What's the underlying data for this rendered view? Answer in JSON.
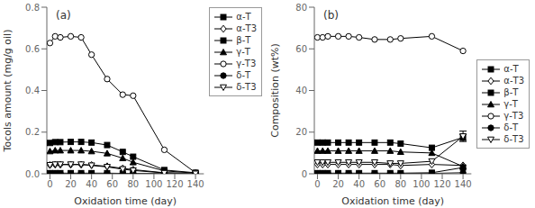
{
  "chart_data": [
    {
      "type": "line",
      "annotation": "(a)",
      "x_label": "Oxidation time (day)",
      "y_label": "Tocols amount (mg/g oil)",
      "x": [
        0,
        5,
        10,
        20,
        30,
        40,
        55,
        70,
        80,
        110,
        140
      ],
      "xlim": [
        -3,
        148
      ],
      "xticks": [
        0,
        20,
        40,
        60,
        80,
        100,
        120,
        140
      ],
      "ylim": [
        0,
        0.8
      ],
      "yticks": [
        {
          "value": 0,
          "label": "0.0"
        },
        0.2,
        0.4,
        0.6,
        0.8
      ],
      "legend": "upper right",
      "series": [
        {
          "name": "α-T",
          "color": "black",
          "marker": "square",
          "values": [
            0.148,
            0.152,
            0.152,
            0.153,
            0.153,
            0.15,
            0.138,
            0.105,
            0.082,
            0.018,
            0.005
          ]
        },
        {
          "name": "α-T3",
          "color": "black",
          "marker": "diamond-open",
          "values": [
            0.042,
            0.044,
            0.044,
            0.044,
            0.044,
            0.042,
            0.036,
            0.026,
            0.02,
            0.005,
            0.002
          ]
        },
        {
          "name": "β-T",
          "color": "black",
          "marker": "square",
          "values": [
            0.003,
            0.003,
            0.003,
            0.003,
            0.003,
            0.003,
            0.003,
            0.002,
            0.001,
            0.001,
            0.0
          ]
        },
        {
          "name": "γ-T",
          "color": "black",
          "marker": "triangle-up",
          "values": [
            0.108,
            0.112,
            0.112,
            0.112,
            0.112,
            0.108,
            0.098,
            0.075,
            0.055,
            0.014,
            0.003
          ]
        },
        {
          "name": "γ-T3",
          "color": "black",
          "marker": "circle-open",
          "values": [
            0.628,
            0.66,
            0.655,
            0.66,
            0.655,
            0.572,
            0.455,
            0.38,
            0.375,
            0.115,
            0.005
          ]
        },
        {
          "name": "δ-T",
          "color": "black",
          "marker": "circle",
          "values": [
            0.002,
            0.002,
            0.002,
            0.002,
            0.002,
            0.002,
            0.002,
            0.001,
            0.001,
            0.0,
            0.0
          ]
        },
        {
          "name": "δ-T3",
          "color": "black",
          "marker": "triangle-down-open",
          "values": [
            0.042,
            0.045,
            0.045,
            0.045,
            0.045,
            0.04,
            0.033,
            0.022,
            0.016,
            0.004,
            0.001
          ]
        }
      ]
    },
    {
      "type": "line",
      "annotation": "(b)",
      "x_label": "Oxidation time (day)",
      "y_label": "Composition (wt%)",
      "x": [
        0,
        5,
        10,
        20,
        30,
        40,
        55,
        70,
        80,
        110,
        140
      ],
      "xlim": [
        -3,
        148
      ],
      "xticks": [
        0,
        20,
        40,
        60,
        80,
        100,
        120,
        140
      ],
      "ylim": [
        0,
        80
      ],
      "yticks": [
        0,
        20,
        40,
        60,
        80
      ],
      "legend": "center right",
      "series": [
        {
          "name": "α-T",
          "color": "black",
          "marker": "square",
          "values": [
            15.0,
            15.0,
            15.0,
            15.0,
            15.0,
            15.0,
            15.0,
            15.0,
            14.5,
            12.5,
            17.5
          ],
          "errors": [
            null,
            null,
            null,
            null,
            null,
            null,
            null,
            null,
            null,
            null,
            1.5
          ]
        },
        {
          "name": "α-T3",
          "color": "black",
          "marker": "diamond-open",
          "values": [
            4.5,
            4.5,
            4.5,
            4.5,
            4.5,
            4.5,
            4.5,
            4.5,
            4.0,
            4.5,
            4.0
          ]
        },
        {
          "name": "β-T",
          "color": "black",
          "marker": "square",
          "values": [
            0.3,
            0.3,
            0.3,
            0.3,
            0.3,
            0.3,
            0.3,
            0.3,
            0.3,
            0.5,
            3.0
          ]
        },
        {
          "name": "γ-T",
          "color": "black",
          "marker": "triangle-up",
          "values": [
            11.0,
            11.0,
            11.0,
            11.0,
            11.0,
            11.0,
            11.0,
            11.0,
            10.5,
            10.0,
            3.5
          ]
        },
        {
          "name": "γ-T3",
          "color": "black",
          "marker": "circle-open",
          "values": [
            65.5,
            65.5,
            66.0,
            66.0,
            66.0,
            65.5,
            64.5,
            64.5,
            65.0,
            66.0,
            59.0
          ]
        },
        {
          "name": "δ-T",
          "color": "black",
          "marker": "circle",
          "values": [
            0.2,
            0.2,
            0.2,
            0.2,
            0.2,
            0.2,
            0.2,
            0.2,
            0.2,
            0.2,
            0.5
          ]
        },
        {
          "name": "δ-T3",
          "color": "black",
          "marker": "triangle-down-open",
          "values": [
            5.5,
            5.5,
            5.5,
            5.5,
            5.5,
            5.5,
            5.5,
            5.0,
            5.0,
            6.0,
            18.0
          ],
          "errors": [
            null,
            null,
            null,
            null,
            null,
            null,
            null,
            null,
            null,
            null,
            2.5
          ]
        }
      ]
    }
  ]
}
